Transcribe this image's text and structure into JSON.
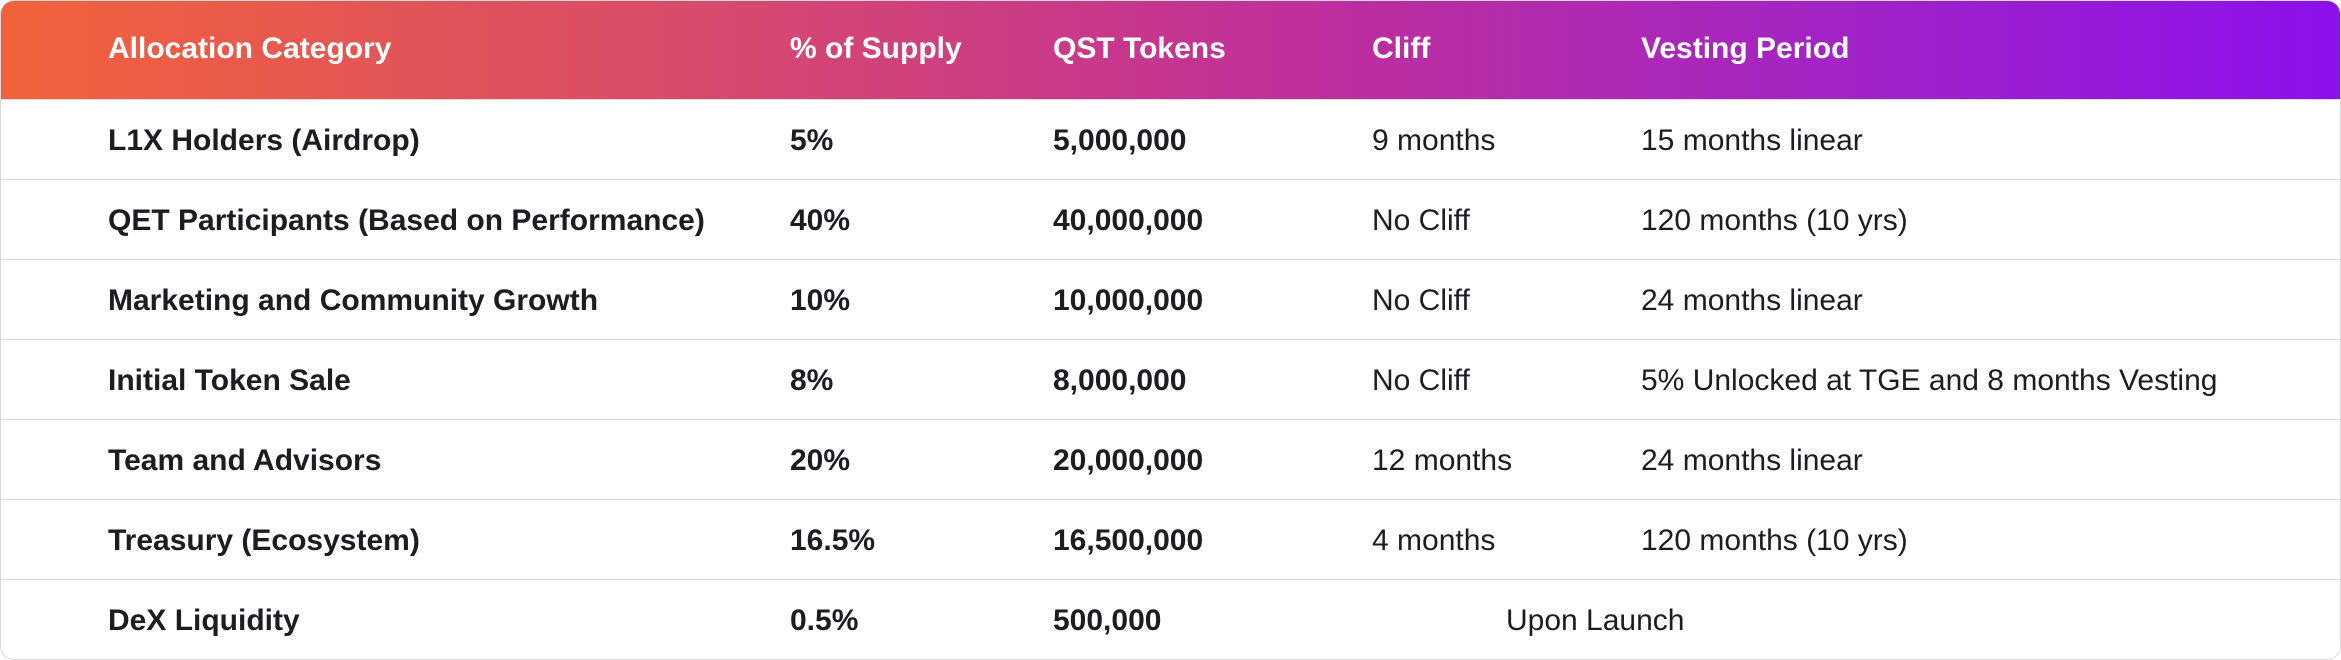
{
  "header": {
    "category": "Allocation Category",
    "supply": "% of Supply",
    "tokens": "QST Tokens",
    "cliff": "Cliff",
    "vesting": "Vesting Period"
  },
  "rows": [
    {
      "category": "L1X Holders (Airdrop)",
      "supply": "5%",
      "tokens": "5,000,000",
      "cliff": "9 months",
      "vesting": "15 months linear"
    },
    {
      "category": "QET Participants (Based on Performance)",
      "supply": "40%",
      "tokens": "40,000,000",
      "cliff": "No Cliff",
      "vesting": "120 months (10 yrs)"
    },
    {
      "category": "Marketing and Community Growth",
      "supply": "10%",
      "tokens": "10,000,000",
      "cliff": "No Cliff",
      "vesting": "24 months linear"
    },
    {
      "category": "Initial Token Sale",
      "supply": "8%",
      "tokens": "8,000,000",
      "cliff": "No Cliff",
      "vesting": "5% Unlocked at TGE and 8 months Vesting"
    },
    {
      "category": "Team and Advisors",
      "supply": "20%",
      "tokens": "20,000,000",
      "cliff": "12 months",
      "vesting": "24 months linear"
    },
    {
      "category": "Treasury (Ecosystem)",
      "supply": "16.5%",
      "tokens": "16,500,000",
      "cliff": "4 months",
      "vesting": "120 months (10 yrs)"
    },
    {
      "category": "DeX Liquidity",
      "supply": "0.5%",
      "tokens": "500,000",
      "schedule": "Upon Launch"
    }
  ]
}
